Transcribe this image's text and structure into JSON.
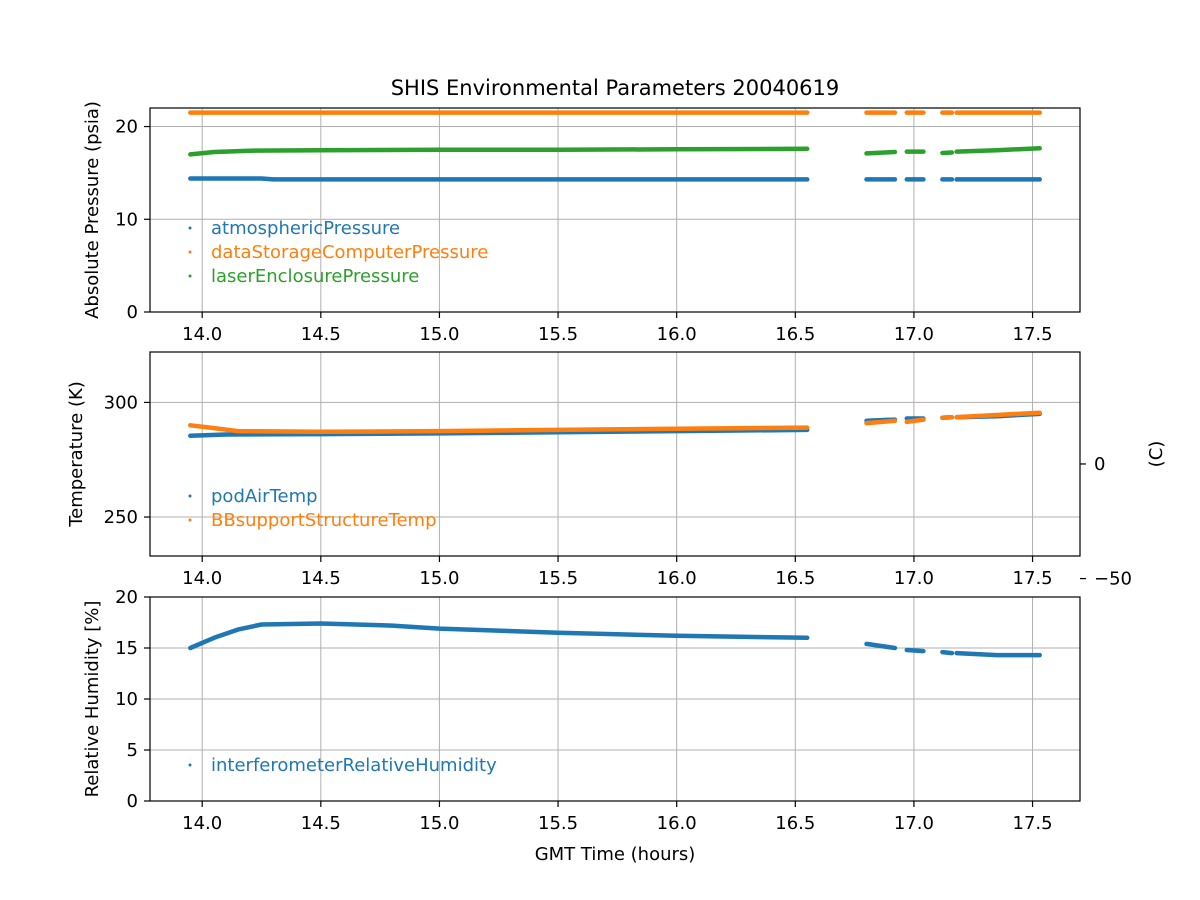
{
  "figure": {
    "title": "SHIS Environmental Parameters 20040619",
    "xlabel": "GMT Time (hours)"
  },
  "colors": {
    "blue": "#1f77b4",
    "orange": "#ff7f0e",
    "green": "#2ca02c"
  },
  "chart_data": [
    {
      "type": "scatter",
      "name": "pressure",
      "ylabel": "Absolute Pressure (psia)",
      "xlim": [
        13.78,
        17.7
      ],
      "ylim": [
        0,
        22
      ],
      "xticks": [
        14.0,
        14.5,
        15.0,
        15.5,
        16.0,
        16.5,
        17.0,
        17.5
      ],
      "xtick_labels": [
        "14.0",
        "14.5",
        "15.0",
        "15.5",
        "16.0",
        "16.5",
        "17.0",
        "17.5"
      ],
      "yticks": [
        0,
        10,
        20
      ],
      "ytick_labels": [
        "0",
        "10",
        "20"
      ],
      "grid": true,
      "legend": "lower-left",
      "series": [
        {
          "name": "atmosphericPressure",
          "color": "#1f77b4",
          "segments": [
            {
              "x": [
                13.95,
                14.25,
                14.3,
                15.0,
                16.0,
                16.55
              ],
              "y": [
                14.4,
                14.4,
                14.3,
                14.3,
                14.3,
                14.3
              ]
            },
            {
              "x": [
                16.8,
                16.92
              ],
              "y": [
                14.3,
                14.3
              ]
            },
            {
              "x": [
                16.97,
                17.04
              ],
              "y": [
                14.3,
                14.3
              ]
            },
            {
              "x": [
                17.12,
                17.16
              ],
              "y": [
                14.3,
                14.3
              ]
            },
            {
              "x": [
                17.18,
                17.53
              ],
              "y": [
                14.3,
                14.3
              ]
            }
          ]
        },
        {
          "name": "dataStorageComputerPressure",
          "color": "#ff7f0e",
          "segments": [
            {
              "x": [
                13.95,
                16.55
              ],
              "y": [
                21.5,
                21.5
              ]
            },
            {
              "x": [
                16.8,
                16.92
              ],
              "y": [
                21.5,
                21.5
              ]
            },
            {
              "x": [
                16.97,
                17.04
              ],
              "y": [
                21.5,
                21.5
              ]
            },
            {
              "x": [
                17.12,
                17.16
              ],
              "y": [
                21.5,
                21.5
              ]
            },
            {
              "x": [
                17.18,
                17.53
              ],
              "y": [
                21.5,
                21.5
              ]
            }
          ]
        },
        {
          "name": "laserEnclosurePressure",
          "color": "#2ca02c",
          "segments": [
            {
              "x": [
                13.95,
                14.05,
                14.2,
                14.5,
                15.0,
                15.5,
                16.0,
                16.55
              ],
              "y": [
                17.0,
                17.25,
                17.4,
                17.45,
                17.5,
                17.5,
                17.55,
                17.6
              ]
            },
            {
              "x": [
                16.8,
                16.92
              ],
              "y": [
                17.1,
                17.25
              ]
            },
            {
              "x": [
                16.97,
                17.04
              ],
              "y": [
                17.3,
                17.3
              ]
            },
            {
              "x": [
                17.12,
                17.16
              ],
              "y": [
                17.15,
                17.2
              ]
            },
            {
              "x": [
                17.18,
                17.35,
                17.53
              ],
              "y": [
                17.3,
                17.45,
                17.65
              ]
            }
          ]
        }
      ]
    },
    {
      "type": "scatter",
      "name": "temperature",
      "ylabel": "Temperature (K)",
      "ylabel_right": "(C)",
      "xlim": [
        13.78,
        17.7
      ],
      "ylim": [
        233,
        322
      ],
      "xticks": [
        14.0,
        14.5,
        15.0,
        15.5,
        16.0,
        16.5,
        17.0,
        17.5
      ],
      "xtick_labels": [
        "14.0",
        "14.5",
        "15.0",
        "15.5",
        "16.0",
        "16.5",
        "17.0",
        "17.5"
      ],
      "yticks": [
        250,
        300
      ],
      "ytick_labels": [
        "250",
        "300"
      ],
      "yticks_right_K": [
        273.15,
        223.15
      ],
      "ytick_labels_right": [
        "0",
        "−50"
      ],
      "grid": true,
      "legend": "lower-left",
      "series": [
        {
          "name": "podAirTemp",
          "color": "#1f77b4",
          "segments": [
            {
              "x": [
                13.95,
                14.1,
                14.5,
                15.0,
                15.5,
                16.0,
                16.55
              ],
              "y": [
                285.5,
                286.0,
                286.2,
                286.5,
                287.0,
                287.5,
                288.0
              ]
            },
            {
              "x": [
                16.8,
                16.92
              ],
              "y": [
                292.0,
                292.5
              ]
            },
            {
              "x": [
                16.97,
                17.04
              ],
              "y": [
                293.0,
                293.0
              ]
            },
            {
              "x": [
                17.12,
                17.16
              ],
              "y": [
                293.3,
                293.5
              ]
            },
            {
              "x": [
                17.18,
                17.35,
                17.53
              ],
              "y": [
                293.5,
                294.0,
                295.0
              ]
            }
          ]
        },
        {
          "name": "BBsupportStructureTemp",
          "color": "#ff7f0e",
          "segments": [
            {
              "x": [
                13.95,
                14.05,
                14.15,
                14.5,
                15.0,
                15.5,
                16.0,
                16.55
              ],
              "y": [
                290.0,
                288.8,
                287.5,
                287.2,
                287.5,
                288.0,
                288.5,
                289.0
              ]
            },
            {
              "x": [
                16.8,
                16.92
              ],
              "y": [
                291.0,
                292.0
              ]
            },
            {
              "x": [
                16.97,
                17.04
              ],
              "y": [
                291.5,
                292.5
              ]
            },
            {
              "x": [
                17.12,
                17.16
              ],
              "y": [
                293.3,
                293.5
              ]
            },
            {
              "x": [
                17.18,
                17.35,
                17.53
              ],
              "y": [
                293.6,
                294.5,
                295.5
              ]
            }
          ]
        }
      ]
    },
    {
      "type": "scatter",
      "name": "humidity",
      "ylabel": "Relative Humidity [%]",
      "xlim": [
        13.78,
        17.7
      ],
      "ylim": [
        0,
        20
      ],
      "xticks": [
        14.0,
        14.5,
        15.0,
        15.5,
        16.0,
        16.5,
        17.0,
        17.5
      ],
      "xtick_labels": [
        "14.0",
        "14.5",
        "15.0",
        "15.5",
        "16.0",
        "16.5",
        "17.0",
        "17.5"
      ],
      "yticks": [
        0,
        5,
        10,
        15,
        20
      ],
      "ytick_labels": [
        "0",
        "5",
        "10",
        "15",
        "20"
      ],
      "grid": true,
      "legend": "lower-left",
      "series": [
        {
          "name": "interferometerRelativeHumidity",
          "color": "#1f77b4",
          "segments": [
            {
              "x": [
                13.95,
                14.05,
                14.15,
                14.25,
                14.5,
                14.8,
                15.0,
                15.5,
                16.0,
                16.55
              ],
              "y": [
                15.0,
                16.0,
                16.8,
                17.3,
                17.4,
                17.2,
                16.9,
                16.5,
                16.2,
                16.0
              ]
            },
            {
              "x": [
                16.8,
                16.92
              ],
              "y": [
                15.4,
                15.0
              ]
            },
            {
              "x": [
                16.97,
                17.04
              ],
              "y": [
                14.8,
                14.7
              ]
            },
            {
              "x": [
                17.12,
                17.16
              ],
              "y": [
                14.6,
                14.5
              ]
            },
            {
              "x": [
                17.18,
                17.35,
                17.53
              ],
              "y": [
                14.5,
                14.3,
                14.3
              ]
            }
          ]
        }
      ]
    }
  ]
}
